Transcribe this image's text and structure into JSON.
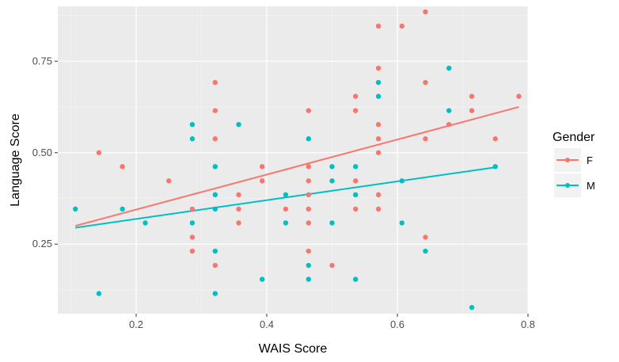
{
  "chart_data": {
    "type": "scatter",
    "title": "",
    "xlabel": "WAIS Score",
    "ylabel": "Language Score",
    "xlim": [
      0.08,
      0.8
    ],
    "ylim": [
      0.06,
      0.9
    ],
    "x_ticks": [
      0.2,
      0.4,
      0.6,
      0.8
    ],
    "x_tick_labels": [
      "0.2",
      "0.4",
      "0.6",
      "0.8"
    ],
    "y_ticks": [
      0.25,
      0.5,
      0.75
    ],
    "y_tick_labels": [
      "0.25",
      "0.50",
      "0.75"
    ],
    "grid": true,
    "legend": {
      "title": "Gender",
      "position": "right"
    },
    "series": [
      {
        "name": "F",
        "color": "#F8766D",
        "points": [
          [
            0.143,
            0.5
          ],
          [
            0.179,
            0.462
          ],
          [
            0.25,
            0.423
          ],
          [
            0.286,
            0.346
          ],
          [
            0.286,
            0.269
          ],
          [
            0.286,
            0.231
          ],
          [
            0.321,
            0.692
          ],
          [
            0.321,
            0.615
          ],
          [
            0.321,
            0.538
          ],
          [
            0.321,
            0.192
          ],
          [
            0.357,
            0.385
          ],
          [
            0.357,
            0.346
          ],
          [
            0.357,
            0.308
          ],
          [
            0.393,
            0.462
          ],
          [
            0.393,
            0.423
          ],
          [
            0.429,
            0.346
          ],
          [
            0.464,
            0.615
          ],
          [
            0.464,
            0.462
          ],
          [
            0.464,
            0.423
          ],
          [
            0.464,
            0.385
          ],
          [
            0.464,
            0.346
          ],
          [
            0.464,
            0.308
          ],
          [
            0.464,
            0.231
          ],
          [
            0.5,
            0.192
          ],
          [
            0.536,
            0.654
          ],
          [
            0.536,
            0.615
          ],
          [
            0.536,
            0.423
          ],
          [
            0.536,
            0.346
          ],
          [
            0.571,
            0.846
          ],
          [
            0.571,
            0.731
          ],
          [
            0.571,
            0.577
          ],
          [
            0.571,
            0.538
          ],
          [
            0.571,
            0.5
          ],
          [
            0.571,
            0.385
          ],
          [
            0.571,
            0.346
          ],
          [
            0.607,
            0.846
          ],
          [
            0.643,
            0.885
          ],
          [
            0.643,
            0.692
          ],
          [
            0.643,
            0.538
          ],
          [
            0.643,
            0.269
          ],
          [
            0.679,
            0.577
          ],
          [
            0.714,
            0.654
          ],
          [
            0.714,
            0.615
          ],
          [
            0.75,
            0.538
          ],
          [
            0.786,
            0.654
          ]
        ],
        "trend": {
          "x": [
            0.107,
            0.786
          ],
          "y": [
            0.3,
            0.625
          ]
        }
      },
      {
        "name": "M",
        "color": "#00BFC4",
        "points": [
          [
            0.107,
            0.346
          ],
          [
            0.143,
            0.115
          ],
          [
            0.179,
            0.346
          ],
          [
            0.214,
            0.308
          ],
          [
            0.286,
            0.577
          ],
          [
            0.286,
            0.538
          ],
          [
            0.286,
            0.308
          ],
          [
            0.321,
            0.462
          ],
          [
            0.321,
            0.385
          ],
          [
            0.321,
            0.346
          ],
          [
            0.321,
            0.231
          ],
          [
            0.321,
            0.115
          ],
          [
            0.357,
            0.577
          ],
          [
            0.393,
            0.154
          ],
          [
            0.429,
            0.385
          ],
          [
            0.429,
            0.308
          ],
          [
            0.464,
            0.538
          ],
          [
            0.464,
            0.192
          ],
          [
            0.464,
            0.154
          ],
          [
            0.5,
            0.462
          ],
          [
            0.5,
            0.423
          ],
          [
            0.5,
            0.308
          ],
          [
            0.536,
            0.462
          ],
          [
            0.536,
            0.385
          ],
          [
            0.536,
            0.154
          ],
          [
            0.571,
            0.692
          ],
          [
            0.571,
            0.654
          ],
          [
            0.607,
            0.423
          ],
          [
            0.607,
            0.308
          ],
          [
            0.643,
            0.231
          ],
          [
            0.679,
            0.731
          ],
          [
            0.679,
            0.615
          ],
          [
            0.714,
            0.077
          ],
          [
            0.75,
            0.462
          ]
        ],
        "trend": {
          "x": [
            0.107,
            0.75
          ],
          "y": [
            0.295,
            0.46
          ]
        }
      }
    ]
  }
}
